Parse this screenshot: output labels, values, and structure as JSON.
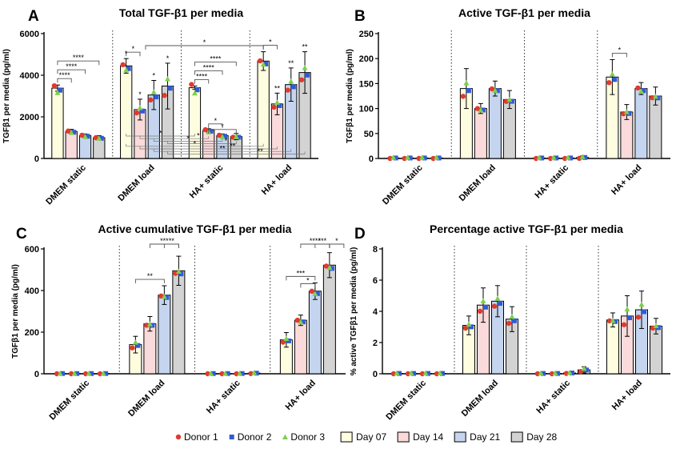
{
  "legend": {
    "donors": [
      {
        "label": "Donor 1",
        "color": "#e03a2f",
        "marker": "circle"
      },
      {
        "label": "Donor 2",
        "color": "#2f5bd6",
        "marker": "square"
      },
      {
        "label": "Donor 3",
        "color": "#7ed04b",
        "marker": "triangle"
      }
    ],
    "days": [
      {
        "label": "Day 07",
        "color": "#fffde0"
      },
      {
        "label": "Day 14",
        "color": "#fadada"
      },
      {
        "label": "Day 21",
        "color": "#c5d5ef"
      },
      {
        "label": "Day 28",
        "color": "#d3d3d3"
      }
    ]
  },
  "chart_data": [
    {
      "panel": "A",
      "type": "bar",
      "title": "Total TGF-β1 per media",
      "ylabel": "TGFβ1 per media (pg/ml)",
      "ylim": [
        0,
        6000
      ],
      "yticks": [
        0,
        2000,
        4000,
        6000
      ],
      "categories": [
        "DMEM static",
        "DMEM load",
        "HA+ static",
        "HA+ load"
      ],
      "series": [
        {
          "name": "Day 07",
          "values": [
            3380,
            4450,
            3400,
            4680
          ],
          "errors": [
            150,
            350,
            80,
            450
          ]
        },
        {
          "name": "Day 14",
          "values": [
            1300,
            2350,
            1350,
            2620
          ],
          "errors": [
            100,
            500,
            80,
            520
          ]
        },
        {
          "name": "Day 21",
          "values": [
            1100,
            3050,
            1100,
            3550
          ],
          "errors": [
            80,
            700,
            80,
            800
          ]
        },
        {
          "name": "Day 28",
          "values": [
            1000,
            3480,
            1050,
            4130
          ],
          "errors": [
            100,
            1100,
            150,
            1000
          ]
        }
      ],
      "significance": [
        {
          "label": "*",
          "group": 1,
          "from": 0,
          "to": 1,
          "level": 0
        },
        {
          "label": "****",
          "group": 0,
          "from": 0,
          "to": 3,
          "level": 2
        },
        {
          "label": "****",
          "group": 0,
          "from": 0,
          "to": 2,
          "level": 1
        },
        {
          "label": "****",
          "group": 0,
          "from": 0,
          "to": 1,
          "level": 0
        },
        {
          "label": "****",
          "group": 2,
          "from": 0,
          "to": 3,
          "level": 2
        },
        {
          "label": "****",
          "group": 2,
          "from": 0,
          "to": 2,
          "level": 1
        },
        {
          "label": "****",
          "group": 2,
          "from": 0,
          "to": 1,
          "level": 0
        },
        {
          "label": "*",
          "group": 2,
          "from": 1,
          "to": 3,
          "level": -1
        },
        {
          "label": "*",
          "group": 2,
          "from": 1,
          "to": 2,
          "level": -2
        },
        {
          "label": "*",
          "group": 3,
          "from": 0,
          "to": 1,
          "level": 0
        }
      ],
      "top_marks": [
        {
          "group": 1,
          "bar": 0,
          "label": "*"
        },
        {
          "group": 1,
          "bar": 1,
          "label": "*"
        },
        {
          "group": 1,
          "bar": 2,
          "label": "*"
        },
        {
          "group": 1,
          "bar": 3,
          "label": "*"
        },
        {
          "group": 3,
          "bar": 1,
          "label": "**"
        },
        {
          "group": 3,
          "bar": 2,
          "label": "**"
        },
        {
          "group": 3,
          "bar": 3,
          "label": "**"
        }
      ],
      "cross_marks": [
        "*",
        "*",
        "*",
        "*",
        "*",
        "**",
        "**",
        "**"
      ],
      "cross_top": {
        "label": "*"
      }
    },
    {
      "panel": "B",
      "type": "bar",
      "title": "Active TGF-β1 per media",
      "ylabel": "TGFβ1 per media (pg/ml)",
      "ylim": [
        0,
        250
      ],
      "yticks": [
        0,
        50,
        100,
        150,
        200,
        250
      ],
      "categories": [
        "DMEM static",
        "DMEM load",
        "HA+ static",
        "HA+ load"
      ],
      "series": [
        {
          "name": "Day 07",
          "values": [
            1,
            140,
            1,
            163
          ],
          "errors": [
            2,
            40,
            2,
            35
          ]
        },
        {
          "name": "Day 14",
          "values": [
            1,
            100,
            1,
            93
          ],
          "errors": [
            2,
            10,
            2,
            15
          ]
        },
        {
          "name": "Day 21",
          "values": [
            1,
            140,
            1,
            140
          ],
          "errors": [
            2,
            15,
            2,
            12
          ]
        },
        {
          "name": "Day 28",
          "values": [
            1,
            118,
            2,
            125
          ],
          "errors": [
            2,
            18,
            3,
            18
          ]
        }
      ],
      "significance": [
        {
          "label": "*",
          "group": 3,
          "from": 0,
          "to": 1,
          "level": 0
        }
      ],
      "top_marks": []
    },
    {
      "panel": "C",
      "type": "bar",
      "title": "Active cumulative TGF-β1 per media",
      "ylabel": "TGFβ1 per media (pg/ml)",
      "ylim": [
        0,
        600
      ],
      "yticks": [
        0,
        200,
        400,
        600
      ],
      "categories": [
        "DMEM static",
        "DMEM load",
        "HA+ static",
        "HA+ load"
      ],
      "series": [
        {
          "name": "Day 07",
          "values": [
            1,
            140,
            1,
            163
          ],
          "errors": [
            2,
            40,
            2,
            35
          ]
        },
        {
          "name": "Day 14",
          "values": [
            1,
            240,
            1,
            257
          ],
          "errors": [
            2,
            35,
            2,
            25
          ]
        },
        {
          "name": "Day 21",
          "values": [
            1,
            378,
            1,
            397
          ],
          "errors": [
            2,
            45,
            2,
            40
          ]
        },
        {
          "name": "Day 28",
          "values": [
            1,
            495,
            3,
            522
          ],
          "errors": [
            2,
            70,
            4,
            60
          ]
        }
      ],
      "significance": [
        {
          "label": "***",
          "group": 1,
          "from": 1,
          "to": 3,
          "level": 2
        },
        {
          "label": "**",
          "group": 1,
          "from": 2,
          "to": 3,
          "level": 1
        },
        {
          "label": "**",
          "group": 1,
          "from": 0,
          "to": 2,
          "level": 0
        },
        {
          "label": "****",
          "group": 3,
          "from": 1,
          "to": 3,
          "level": 3
        },
        {
          "label": "***",
          "group": 3,
          "from": 2,
          "to": 3,
          "level": 2
        },
        {
          "label": "*",
          "group": 3,
          "from": 3,
          "to": 3,
          "level": 1
        },
        {
          "label": "***",
          "group": 3,
          "from": 0,
          "to": 2,
          "level": 0
        },
        {
          "label": "*",
          "group": 3,
          "from": 1,
          "to": 2,
          "level": -1
        }
      ],
      "top_marks": []
    },
    {
      "panel": "D",
      "type": "bar",
      "title": "Percentage active TGF-β1 per media",
      "ylabel": "% active TGFβ1 per media (pg/ml)",
      "ylim": [
        0,
        8
      ],
      "yticks": [
        0,
        2,
        4,
        6,
        8
      ],
      "categories": [
        "DMEM static",
        "DMEM load",
        "HA+ static",
        "HA+ load"
      ],
      "series": [
        {
          "name": "Day 07",
          "values": [
            0.02,
            3.1,
            0.02,
            3.45
          ],
          "errors": [
            0.05,
            0.6,
            0.05,
            0.45
          ]
        },
        {
          "name": "Day 14",
          "values": [
            0.02,
            4.4,
            0.02,
            3.7
          ],
          "errors": [
            0.05,
            1.1,
            0.05,
            1.3
          ]
        },
        {
          "name": "Day 21",
          "values": [
            0.02,
            4.65,
            0.05,
            4.1
          ],
          "errors": [
            0.05,
            1.0,
            0.05,
            1.2
          ]
        },
        {
          "name": "Day 28",
          "values": [
            0.02,
            3.5,
            0.25,
            3.05
          ],
          "errors": [
            0.05,
            0.8,
            0.2,
            0.5
          ]
        }
      ],
      "significance": [],
      "top_marks": []
    }
  ]
}
